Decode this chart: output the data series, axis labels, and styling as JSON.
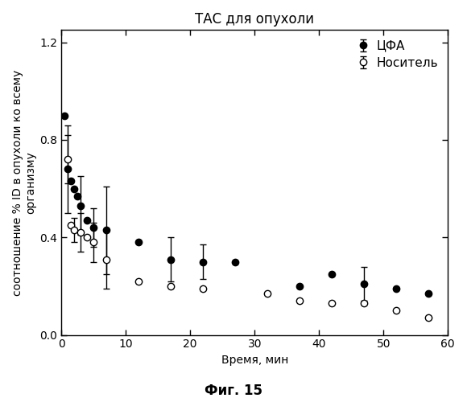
{
  "title": "ТАС для опухоли",
  "xlabel": "Время, мин",
  "ylabel": "соотношение % ID в опухоли ко всему\nорганизму",
  "figcaption": "Фиг. 15",
  "xlim": [
    0,
    60
  ],
  "ylim": [
    0,
    1.25
  ],
  "yticks": [
    0,
    0.4,
    0.8,
    1.2
  ],
  "xticks": [
    0,
    10,
    20,
    30,
    40,
    50,
    60
  ],
  "series_cfa": {
    "label": "ЦФА",
    "x": [
      0.5,
      1,
      1.5,
      2,
      2.5,
      3,
      4,
      5,
      7,
      12,
      17,
      22,
      27,
      37,
      42,
      47,
      52,
      57
    ],
    "y": [
      0.9,
      0.68,
      0.63,
      0.6,
      0.57,
      0.53,
      0.47,
      0.44,
      0.43,
      0.38,
      0.31,
      0.3,
      0.3,
      0.2,
      0.25,
      0.21,
      0.19,
      0.17
    ],
    "yerr": [
      0.0,
      0.18,
      0.0,
      0.0,
      0.0,
      0.12,
      0.0,
      0.08,
      0.18,
      0.0,
      0.09,
      0.07,
      0.0,
      0.0,
      0.0,
      0.07,
      0.0,
      0.0
    ],
    "color": "#000000",
    "filled": true
  },
  "series_vehicle": {
    "label": "Носитель",
    "x": [
      1,
      1.5,
      2,
      3,
      4,
      5,
      7,
      12,
      17,
      22,
      32,
      37,
      42,
      47,
      52,
      57
    ],
    "y": [
      0.72,
      0.45,
      0.43,
      0.42,
      0.4,
      0.38,
      0.31,
      0.22,
      0.2,
      0.19,
      0.17,
      0.14,
      0.13,
      0.13,
      0.1,
      0.07
    ],
    "yerr": [
      0.1,
      0.0,
      0.05,
      0.08,
      0.0,
      0.08,
      0.12,
      0.0,
      0.0,
      0.0,
      0.0,
      0.0,
      0.0,
      0.0,
      0.0,
      0.0
    ],
    "color": "#000000",
    "filled": false
  },
  "background_color": "#ffffff",
  "fontsize_title": 12,
  "fontsize_labels": 10,
  "fontsize_ticks": 10,
  "fontsize_legend": 11,
  "fontsize_caption": 12
}
